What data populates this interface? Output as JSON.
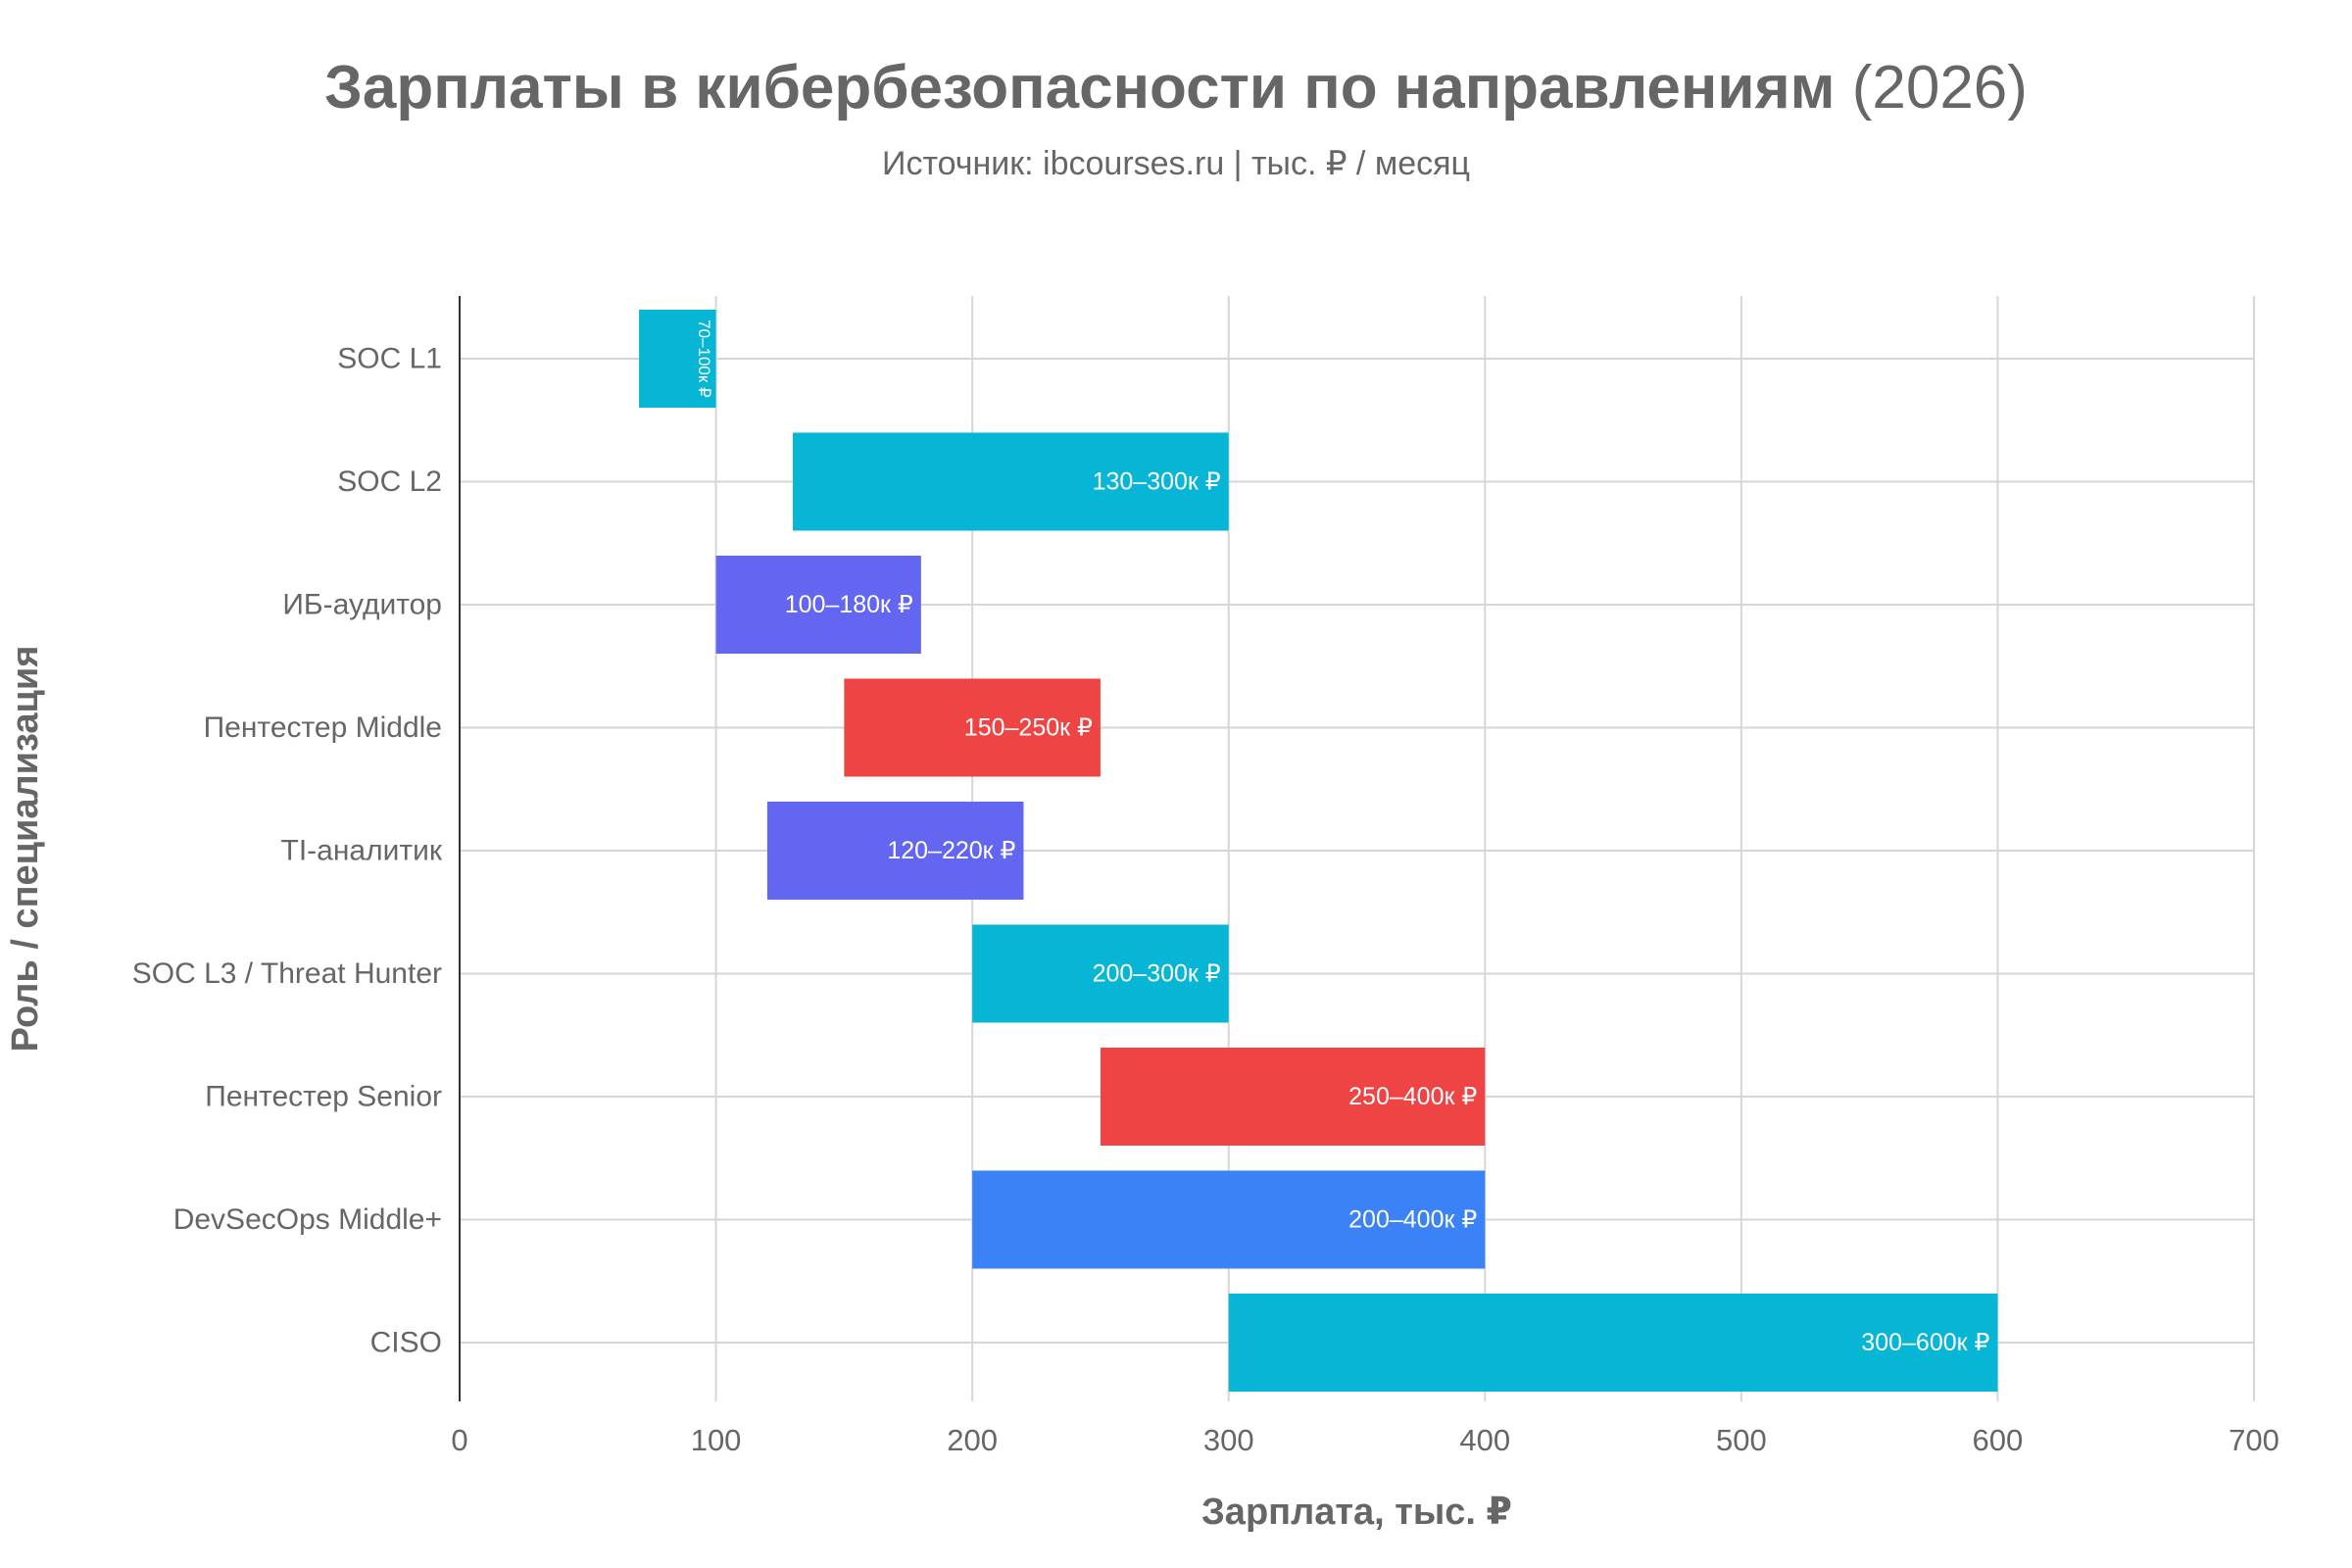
{
  "header": {
    "title_main": "Зарплаты в кибербезопасности по направлениям",
    "title_year": "(2026)",
    "subtitle": "Источник: ibcourses.ru | тыс. ₽ / месяц"
  },
  "colors": {
    "text": "#666666",
    "grid": "#d6d6d6",
    "axis": "#333333",
    "label": "#ffffff"
  },
  "chart_data": {
    "type": "bar",
    "orientation": "horizontal-range",
    "title": "Зарплаты в кибербезопасности по направлениям (2026)",
    "subtitle": "Источник: ibcourses.ru | тыс. ₽ / месяц",
    "xlabel": "Зарплата, тыс. ₽",
    "ylabel": "Роль / специализация",
    "xlim": [
      0,
      700
    ],
    "xticks": [
      0,
      100,
      200,
      300,
      400,
      500,
      600,
      700
    ],
    "grid": true,
    "bars": [
      {
        "category": "SOC L1",
        "low": 70,
        "high": 100,
        "label": "70–100к ₽",
        "color": "#06b6d4"
      },
      {
        "category": "SOC L2",
        "low": 130,
        "high": 300,
        "label": "130–300к ₽",
        "color": "#06b6d4"
      },
      {
        "category": "ИБ-аудитор",
        "low": 100,
        "high": 180,
        "label": "100–180к ₽",
        "color": "#6366f1"
      },
      {
        "category": "Пентестер Middle",
        "low": 150,
        "high": 250,
        "label": "150–250к ₽",
        "color": "#ef4444"
      },
      {
        "category": "TI-аналитик",
        "low": 120,
        "high": 220,
        "label": "120–220к ₽",
        "color": "#6366f1"
      },
      {
        "category": "SOC L3 / Threat Hunter",
        "low": 200,
        "high": 300,
        "label": "200–300к ₽",
        "color": "#06b6d4"
      },
      {
        "category": "Пентестер Senior",
        "low": 250,
        "high": 400,
        "label": "250–400к ₽",
        "color": "#ef4444"
      },
      {
        "category": "DevSecOps Middle+",
        "low": 200,
        "high": 400,
        "label": "200–400к ₽",
        "color": "#3b82f6"
      },
      {
        "category": "CISO",
        "low": 300,
        "high": 600,
        "label": "300–600к ₽",
        "color": "#06b6d4"
      }
    ]
  }
}
